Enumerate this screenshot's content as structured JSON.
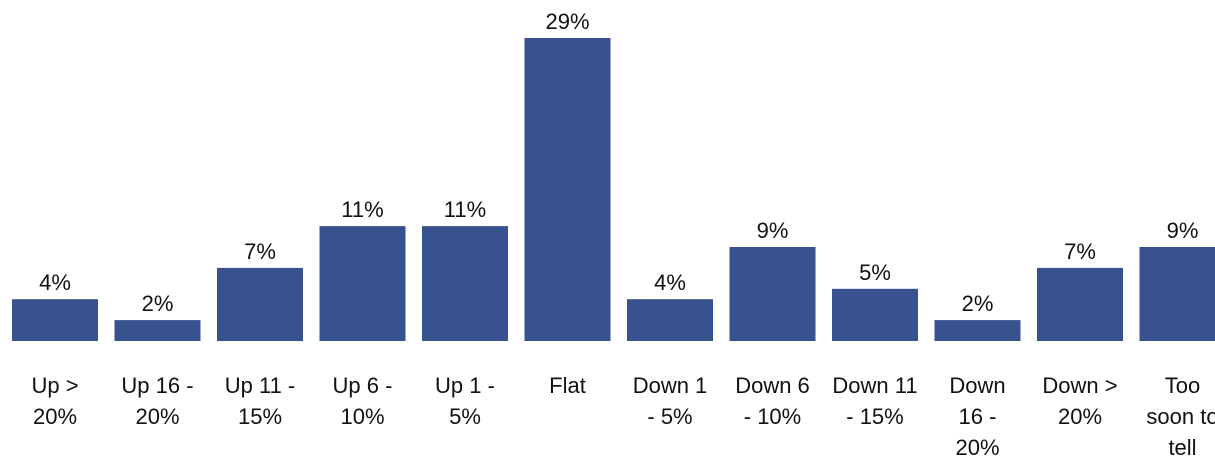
{
  "chart_data": {
    "type": "bar",
    "categories": [
      "Up > 20%",
      "Up 16 - 20%",
      "Up 11 - 15%",
      "Up 6 - 10%",
      "Up 1 - 5%",
      "Flat",
      "Down 1 - 5%",
      "Down 6 - 10%",
      "Down 11 - 15%",
      "Down 16 - 20%",
      "Down > 20%",
      "Too soon to tell"
    ],
    "values": [
      4,
      2,
      7,
      11,
      11,
      29,
      4,
      9,
      5,
      2,
      7,
      9
    ],
    "value_labels": [
      "4%",
      "2%",
      "7%",
      "11%",
      "11%",
      "29%",
      "4%",
      "9%",
      "5%",
      "2%",
      "7%",
      "9%"
    ],
    "ylim": [
      0,
      29
    ],
    "grid": false,
    "legend": "none",
    "bar_color": "#38528f"
  }
}
